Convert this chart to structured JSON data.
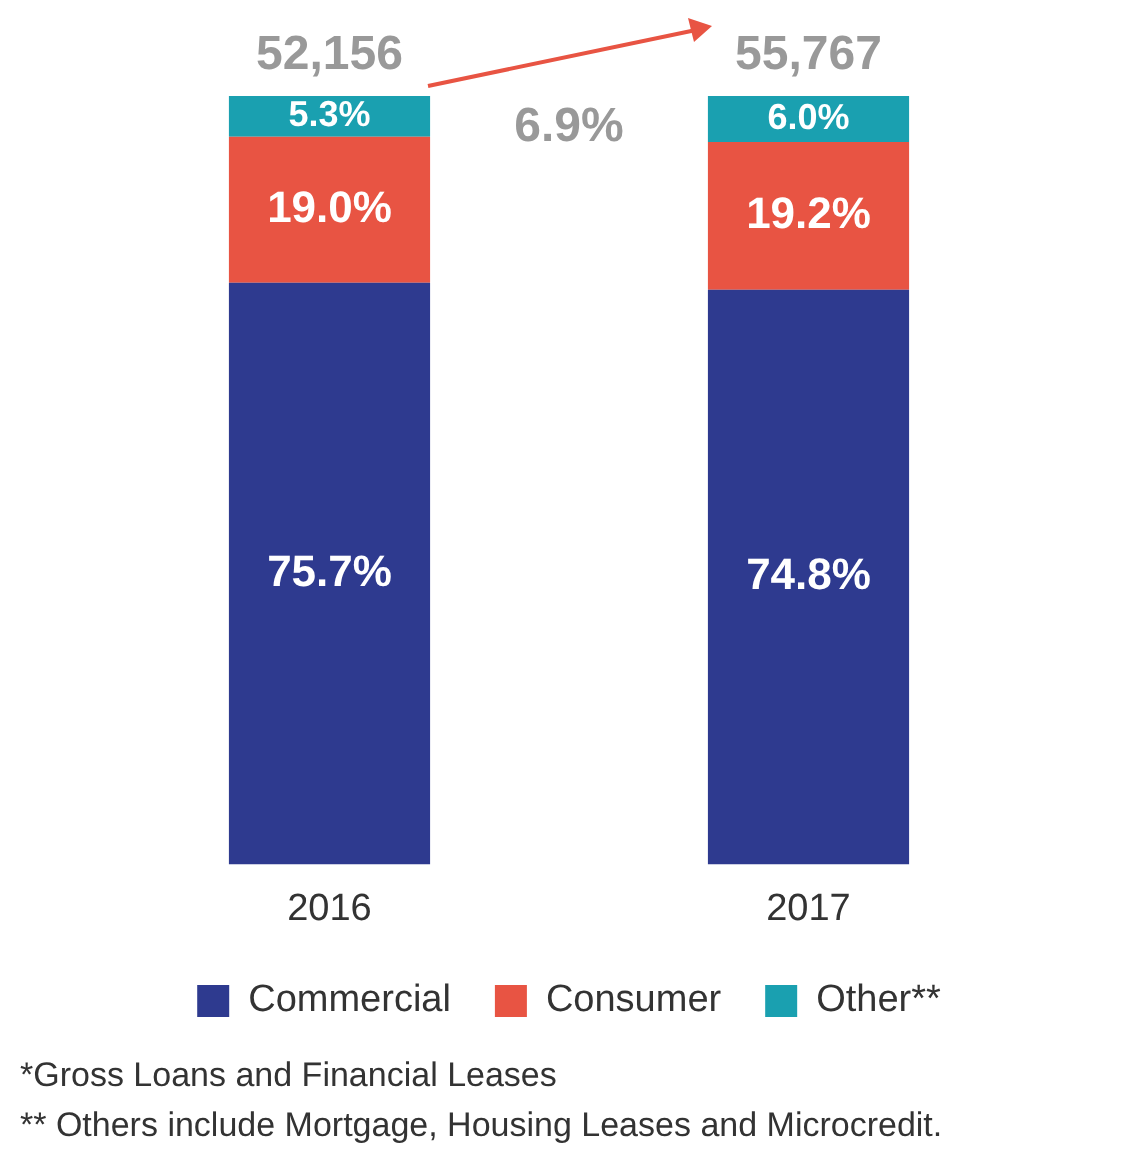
{
  "chart_data": {
    "type": "bar",
    "stacked": true,
    "categories": [
      "2016",
      "2017"
    ],
    "series": [
      {
        "name": "Commercial",
        "color": "#2e3a8f",
        "values": [
          75.7,
          74.8
        ],
        "value_labels": [
          "75.7%",
          "74.8%"
        ]
      },
      {
        "name": "Consumer",
        "color": "#e85443",
        "values": [
          19.0,
          19.2
        ],
        "value_labels": [
          "19.0%",
          "19.2%"
        ]
      },
      {
        "name": "Other**",
        "color": "#1aa0b0",
        "values": [
          5.3,
          6.0
        ],
        "value_labels": [
          "5.3%",
          "6.0%"
        ]
      }
    ],
    "annotations": [
      {
        "text": "52,156",
        "x": "2016",
        "y": 100
      },
      {
        "text": "55,767",
        "x": "2017",
        "y": 100
      },
      "6.9%",
      "*Gross Loans and Financial Leases",
      "** Others include Mortgage, Housing Leases and Microcredit."
    ],
    "legend": "bottom"
  }
}
